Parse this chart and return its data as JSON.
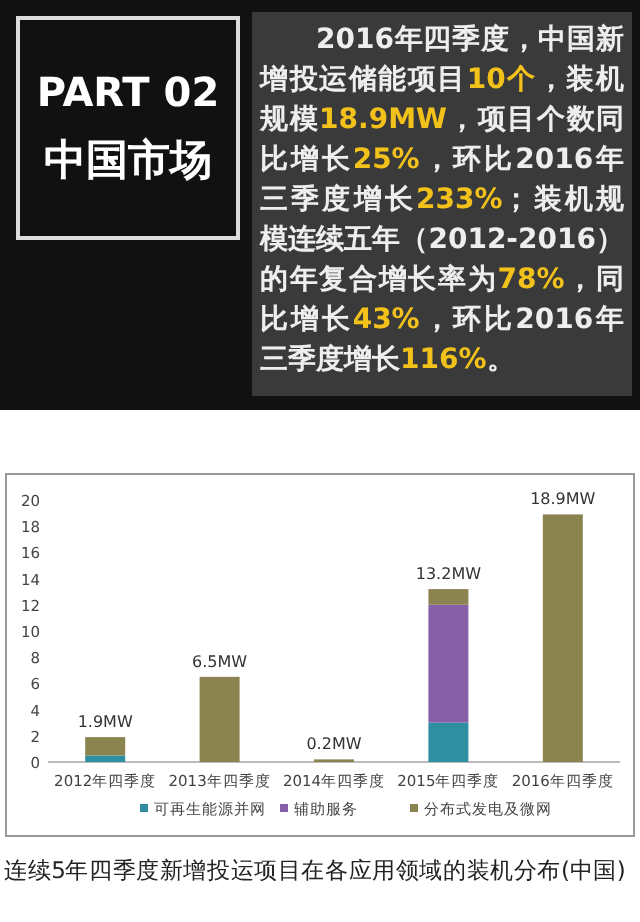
{
  "chart_data": {
    "type": "bar",
    "stacked": true,
    "title": "连续5年四季度新增投运项目在各应用领域的装机分布(中国)",
    "annotations": [
      "PART 02",
      "中国市场",
      "2016年四季度，中国新增投运储能项目**10个**，装机规模**18.9MW**，项目个数同比增长**25%**，环比2016年三季度增长**233%**；装机规模连续五年（2012-2016）的年复合增长率为**78%**，同比增长**43%**，环比2016年三季度增长**116%**。"
    ],
    "categories": [
      "2012年四季度",
      "2013年四季度",
      "2014年四季度",
      "2015年四季度",
      "2016年四季度"
    ],
    "series": [
      {
        "name": "可再生能源并网",
        "color": "#2e8fa3",
        "values": [
          0.5,
          null,
          null,
          3.0,
          null
        ]
      },
      {
        "name": "辅助服务",
        "color": "#8560a8",
        "values": [
          null,
          null,
          null,
          9.0,
          null
        ]
      },
      {
        "name": "分布式发电及微网",
        "color": "#8c8450",
        "values": [
          1.4,
          6.5,
          0.2,
          1.2,
          18.9
        ]
      }
    ],
    "totals": [
      "1.9MW",
      "6.5MW",
      "0.2MW",
      "13.2MW",
      "18.9MW"
    ],
    "ylim": [
      0,
      20
    ],
    "yticks": [
      0,
      2,
      4,
      6,
      8,
      10,
      12,
      14,
      16,
      18,
      20
    ],
    "legend": "bottom"
  }
}
